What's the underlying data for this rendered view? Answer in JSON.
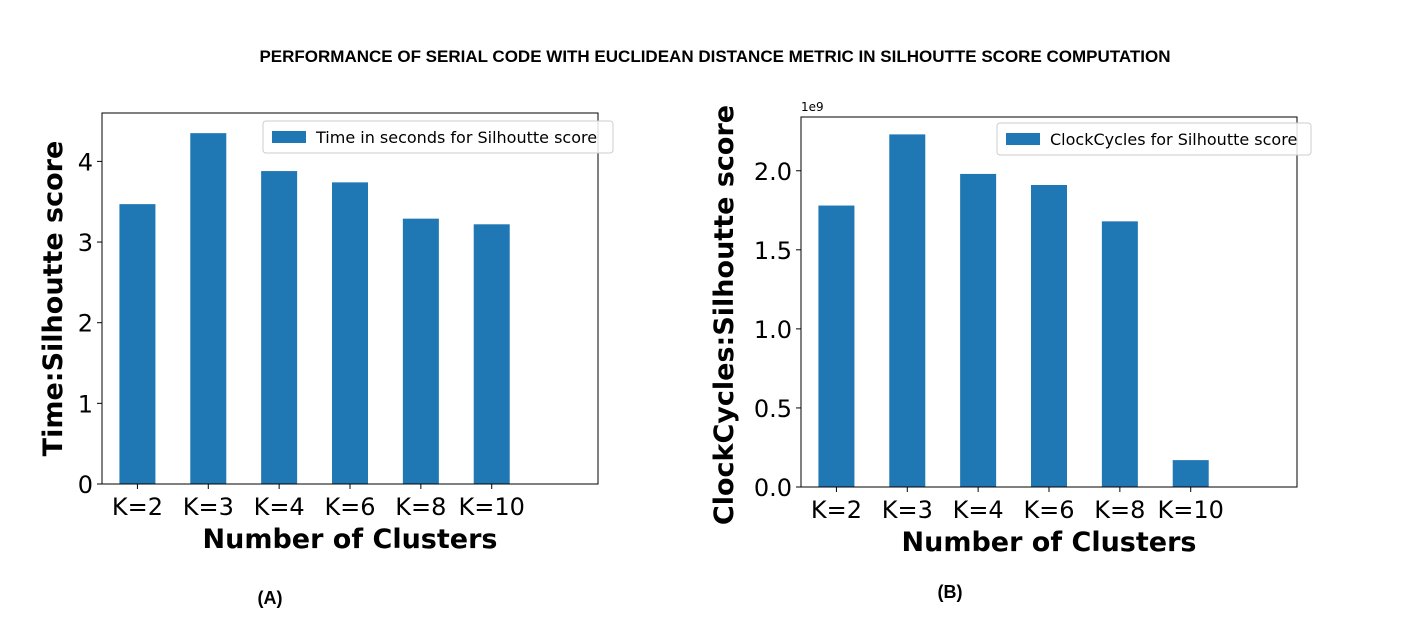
{
  "figure_title": "PERFORMANCE OF SERIAL CODE WITH EUCLIDEAN DISTANCE METRIC IN SILHOUTTE SCORE COMPUTATION",
  "colors": {
    "bar": "#1f77b4",
    "axis": "#000000",
    "legend_border": "#cccccc"
  },
  "chart_data": [
    {
      "type": "bar",
      "panel_label": "(A)",
      "title": "",
      "categories": [
        "K=2",
        "K=3",
        "K=4",
        "K=6",
        "K=8",
        "K=10"
      ],
      "series": [
        {
          "name": "Time in seconds for Silhoutte score",
          "values": [
            3.47,
            4.35,
            3.88,
            3.74,
            3.29,
            3.22
          ]
        }
      ],
      "xlabel": "Number of Clusters",
      "ylabel": "Time:Silhoutte score",
      "ylim": [
        0,
        4.6
      ],
      "yticks": [
        0,
        1,
        2,
        3,
        4
      ],
      "ytick_labels": [
        "0",
        "1",
        "2",
        "3",
        "4"
      ],
      "offset_text": "",
      "grid": false,
      "legend_position": "upper right"
    },
    {
      "type": "bar",
      "panel_label": "(B)",
      "title": "",
      "categories": [
        "K=2",
        "K=3",
        "K=4",
        "K=6",
        "K=8",
        "K=10"
      ],
      "series": [
        {
          "name": "ClockCycles for Silhoutte score",
          "values": [
            1780000000.0,
            2230000000.0,
            1980000000.0,
            1910000000.0,
            1680000000.0,
            170000000.0
          ]
        }
      ],
      "xlabel": "Number of Clusters",
      "ylabel": "ClockCycles:Silhoutte score",
      "ylim": [
        0,
        2340000000.0
      ],
      "yticks": [
        0,
        500000000.0,
        1000000000.0,
        1500000000.0,
        2000000000.0
      ],
      "ytick_labels": [
        "0.0",
        "0.5",
        "1.0",
        "1.5",
        "2.0"
      ],
      "offset_text": "1e9",
      "grid": false,
      "legend_position": "upper right"
    }
  ]
}
